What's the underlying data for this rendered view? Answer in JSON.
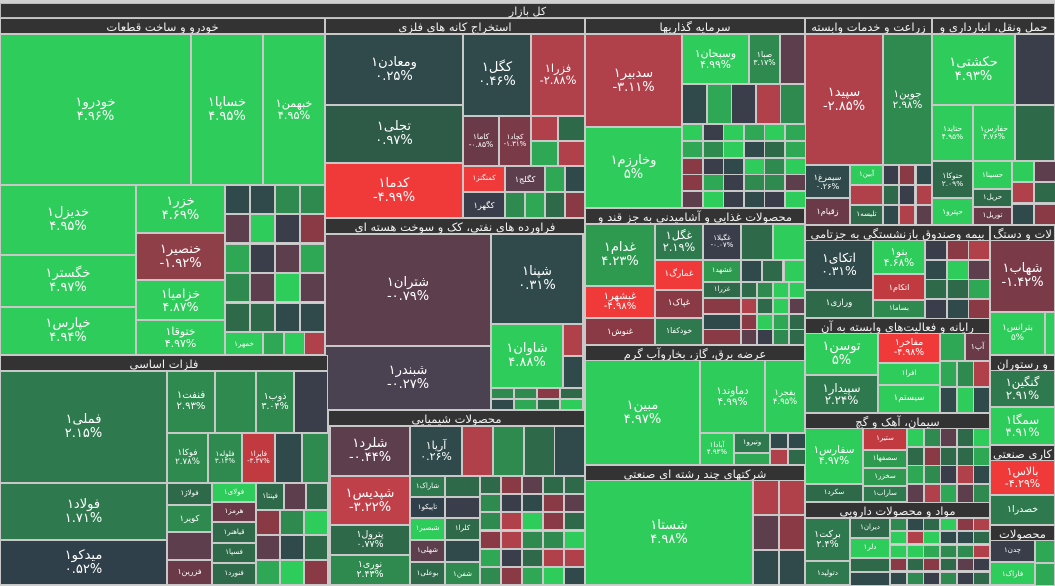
{
  "title": "کل بازار",
  "sectors": [
    {
      "title": "خودرو و ساخت قطعات",
      "stocks": [
        {
          "name": "خودرو۱",
          "change": "۴.۹۶%",
          "color": "#2ecc5a"
        },
        {
          "name": "خساپا۱",
          "change": "۴.۹۵%",
          "color": "#2ecc5a"
        },
        {
          "name": "خبهمن۱",
          "change": "۴.۹۵%",
          "color": "#2ecc5a"
        },
        {
          "name": "خدیزل۱",
          "change": "۴.۹۵%",
          "color": "#2ecc5a"
        },
        {
          "name": "خگستر۱",
          "change": "۴.۹۷%",
          "color": "#2ecc5a"
        },
        {
          "name": "خپارس۱",
          "change": "۴.۹۴%",
          "color": "#2ecc5a"
        },
        {
          "name": "خزر۱",
          "change": "۴.۶۹%",
          "color": "#2ecc5a"
        },
        {
          "name": "خنصیر۱",
          "change": "-۱.۹۲%",
          "color": "#8f3f48"
        },
        {
          "name": "خزامیا۱",
          "change": "۴.۸۷%",
          "color": "#2ecc5a"
        },
        {
          "name": "ختوقا۱",
          "change": "۴.۹۷%",
          "color": "#2ecc5a"
        },
        {
          "name": "خمهر۱",
          "change": "",
          "color": "#2ecc5a"
        }
      ]
    },
    {
      "title": "استخراج کانه های فلزی",
      "stocks": [
        {
          "name": "ومعادن۱",
          "change": "۰.۲۵%",
          "color": "#304a4c"
        },
        {
          "name": "تجلی۱",
          "change": "۰.۹۷%",
          "color": "#2e5a48"
        },
        {
          "name": "کدما۱",
          "change": "-۴.۹۹%",
          "color": "#f03a3a"
        },
        {
          "name": "کگل۱",
          "change": "۰.۴۶%",
          "color": "#304a4c"
        },
        {
          "name": "فزرا۱",
          "change": "-۲.۸۸%",
          "color": "#b0404a"
        },
        {
          "name": "کاما۱",
          "change": "-۰.۸۵%",
          "color": "#6a3a48"
        },
        {
          "name": "کچاد۱",
          "change": "-۱.۳۱%",
          "color": "#7a3a48"
        },
        {
          "name": "کمنگنز۱",
          "change": "",
          "color": "#f03a3a"
        },
        {
          "name": "کگهر۱",
          "change": "",
          "color": "#3a3d4a"
        },
        {
          "name": "کگلج۱",
          "change": "",
          "color": "#5c3e4c"
        }
      ]
    },
    {
      "title": "فراورده های نفتی، کک و سوخت هسته ای",
      "stocks": [
        {
          "name": "شتران۱",
          "change": "-۰.۷۹%",
          "color": "#5c3e4c"
        },
        {
          "name": "شبندر۱",
          "change": "-۰.۲۷%",
          "color": "#4a4250"
        },
        {
          "name": "شپنا۱",
          "change": "۰.۳۱%",
          "color": "#304a4c"
        },
        {
          "name": "شاوان۱",
          "change": "۴.۸۸%",
          "color": "#2ecc5a"
        }
      ]
    },
    {
      "title": "فلزات اساسی",
      "stocks": [
        {
          "name": "فملی۱",
          "change": "۲.۱۵%",
          "color": "#2e7a4e"
        },
        {
          "name": "فولاد۱",
          "change": "۱.۷۱%",
          "color": "#2e7a4e"
        },
        {
          "name": "میدکو۱",
          "change": "۰.۵۲%",
          "color": "#30404a"
        },
        {
          "name": "فنفت۱",
          "change": "۲.۹۳%",
          "color": "#2e8a4e"
        },
        {
          "name": "ذوب۱",
          "change": "۳.۰۴%",
          "color": "#2e8a4e"
        },
        {
          "name": "فوکا۱",
          "change": "۲.۷۸%",
          "color": "#2e8a4e"
        },
        {
          "name": "فلوله۱",
          "change": "۳.۱۴%",
          "color": "#2e8a4e"
        },
        {
          "name": "فایرا۱",
          "change": "-۳.۳۷%",
          "color": "#c03a40"
        },
        {
          "name": "فولاژ۱",
          "change": "",
          "color": "#2e6a4a"
        },
        {
          "name": "فولای۱",
          "change": "",
          "color": "#2ecc5a"
        },
        {
          "name": "فپنتا۱",
          "change": "",
          "color": "#2e6a4a"
        },
        {
          "name": "کویر۱",
          "change": "",
          "color": "#2e8a4e"
        },
        {
          "name": "هرمز۱",
          "change": "",
          "color": "#6a3a48"
        },
        {
          "name": "قیاهنر۱",
          "change": "",
          "color": "#2e6a4a"
        },
        {
          "name": "فسپا۱",
          "change": "",
          "color": "#2e6a4a"
        },
        {
          "name": "فنورد۱",
          "change": "",
          "color": "#2e6a4a"
        },
        {
          "name": "فزرین۱",
          "change": "",
          "color": "#6a3a48"
        }
      ]
    },
    {
      "title": "محصولات شیمیایی",
      "stocks": [
        {
          "name": "شلرد۱",
          "change": "-۰.۴۴%",
          "color": "#5c3e4c"
        },
        {
          "name": "آریا۱",
          "change": "۰.۲۶%",
          "color": "#304a4c"
        },
        {
          "name": "شپدیس۱",
          "change": "-۳.۲۲%",
          "color": "#c0404a"
        },
        {
          "name": "پترول۱",
          "change": "۰.۷۷%",
          "color": "#2e6a4a"
        },
        {
          "name": "نوری۱",
          "change": "۲.۴۳%",
          "color": "#2e8a4e"
        },
        {
          "name": "شاراک۱",
          "change": "",
          "color": "#2e7a4e"
        },
        {
          "name": "تاپیکو۱",
          "change": "",
          "color": "#30404a"
        },
        {
          "name": "شبصیر۱",
          "change": "",
          "color": "#2ecc5a"
        },
        {
          "name": "شهلی۱",
          "change": "",
          "color": "#5c3e4c"
        },
        {
          "name": "بوعلی۱",
          "change": "",
          "color": "#2e6a4a"
        },
        {
          "name": "کلرا۱",
          "change": "",
          "color": "#2e6a4a"
        },
        {
          "name": "شفن۱",
          "change": "",
          "color": "#2e8a4e"
        }
      ]
    },
    {
      "title": "سرمایه گذاریها",
      "stocks": [
        {
          "name": "سدبیر۱",
          "change": "-۳.۱۱%",
          "color": "#b0404a"
        },
        {
          "name": "وخارزم۱",
          "change": "۵%",
          "color": "#2ecc5a"
        },
        {
          "name": "وسبحان۱",
          "change": "۴.۹۹%",
          "color": "#2ecc5a"
        },
        {
          "name": "صبا۱",
          "change": "۳.۱۷%",
          "color": "#2e8a4e"
        }
      ]
    },
    {
      "title": "محصولات غذایی و آشامیدنی به جز قند و",
      "stocks": [
        {
          "name": "غدام۱",
          "change": "۴.۲۳%",
          "color": "#2e9a50"
        },
        {
          "name": "غبشهر۱",
          "change": "-۴.۹۸%",
          "color": "#f03a3a"
        },
        {
          "name": "غنوش۱",
          "change": "",
          "color": "#8a3a44"
        },
        {
          "name": "غگل۱",
          "change": "۲.۱۹%",
          "color": "#2e7a4e"
        },
        {
          "name": "غمارگ۱",
          "change": "",
          "color": "#f03a3a"
        },
        {
          "name": "غپاک۱",
          "change": "",
          "color": "#8a3a44"
        },
        {
          "name": "خودکفا۱",
          "change": "",
          "color": "#2e7a4e"
        },
        {
          "name": "غگیلا۱",
          "change": "-۰.۰۷%",
          "color": "#3a3d4a"
        },
        {
          "name": "غشهد۱",
          "change": "",
          "color": "#2e9a50"
        },
        {
          "name": "غزرا۱",
          "change": "",
          "color": "#2e6a4a"
        }
      ]
    },
    {
      "title": "عرضه برق، گاز، بخاروآب گرم",
      "stocks": [
        {
          "name": "مبین۱",
          "change": "۴.۹۷%",
          "color": "#2ecc5a"
        },
        {
          "name": "دماوند۱",
          "change": "۴.۹۹%",
          "color": "#2ecc5a"
        },
        {
          "name": "بفجر۱",
          "change": "۴.۹۵%",
          "color": "#2ecc5a"
        },
        {
          "name": "آبادا۱",
          "change": "۴.۹۴%",
          "color": "#2ecc5a"
        },
        {
          "name": "ونیرو۱",
          "change": "",
          "color": "#2e7a4e"
        }
      ]
    },
    {
      "title": "شرکتهای چند رشته ای صنعتی",
      "stocks": [
        {
          "name": "شستا۱",
          "change": "۴.۹۸%",
          "color": "#2ecc5a"
        }
      ]
    },
    {
      "title": "زراعت و خدمات وابسته",
      "stocks": [
        {
          "name": "سپید۱",
          "change": "-۲.۸۵%",
          "color": "#b0404a"
        },
        {
          "name": "جوین۱",
          "change": "۲.۹۸%",
          "color": "#2e8a4e"
        },
        {
          "name": "سیمرغ۱",
          "change": "۰.۲۶%",
          "color": "#304a4c"
        },
        {
          "name": "زقیام۱",
          "change": "",
          "color": "#6a3a48"
        },
        {
          "name": "آبین۱",
          "change": "",
          "color": "#2ecc5a"
        },
        {
          "name": "تلیسه۱",
          "change": "",
          "color": "#2e6a4a"
        }
      ]
    },
    {
      "title": "حمل ونقل، انبارداری و",
      "stocks": [
        {
          "name": "حکشتی۱",
          "change": "۴.۹۳%",
          "color": "#2ecc5a"
        },
        {
          "name": "حتاید۱",
          "change": "۴.۹۵%",
          "color": "#2ecc5a"
        },
        {
          "name": "حفارس۱",
          "change": "۴.۷۶%",
          "color": "#2ecc5a"
        },
        {
          "name": "حتوکا۱",
          "change": "۲.۰۹%",
          "color": "#2e6a4a"
        },
        {
          "name": "حسینا۱",
          "change": "",
          "color": "#2ecc5a"
        },
        {
          "name": "حریل۱",
          "change": "",
          "color": "#2e6a4a"
        },
        {
          "name": "حپترو۱",
          "change": "",
          "color": "#2ecc5a"
        },
        {
          "name": "توریل۱",
          "change": "",
          "color": "#6a3a48"
        }
      ]
    },
    {
      "title": "بیمه وصندوق بازنشستگی به جزتامی",
      "stocks": [
        {
          "name": "اتکای۱",
          "change": "۰.۳۱%",
          "color": "#304a4c"
        },
        {
          "name": "ورازی۱",
          "change": "",
          "color": "#2e6a4a"
        },
        {
          "name": "بنو۱",
          "change": "۴.۶۸%",
          "color": "#2ecc5a"
        },
        {
          "name": "اتکام۱",
          "change": "",
          "color": "#c03a40"
        },
        {
          "name": "بساما۱",
          "change": "",
          "color": "#2e8a4e"
        }
      ]
    },
    {
      "title": "رایانه و فعالیت‌های وابسته به آن",
      "stocks": [
        {
          "name": "توسن۱",
          "change": "۵%",
          "color": "#2ecc5a"
        },
        {
          "name": "سپیدار۱",
          "change": "۲.۲۴%",
          "color": "#2e7a4e"
        },
        {
          "name": "مفاخر۱",
          "change": "-۴.۹۸%",
          "color": "#f03a3a"
        },
        {
          "name": "افرا۱",
          "change": "",
          "color": "#2ecc5a"
        },
        {
          "name": "سیستم۱",
          "change": "",
          "color": "#2ecc5a"
        },
        {
          "name": "آپ۱",
          "change": "",
          "color": "#6a3a48"
        }
      ]
    },
    {
      "title": "سیمان، آهک و گچ",
      "stocks": [
        {
          "name": "سفارس۱",
          "change": "۴.۹۷%",
          "color": "#2ecc5a"
        },
        {
          "name": "سکرد۱",
          "change": "",
          "color": "#2e6a4a"
        },
        {
          "name": "ستیر۱",
          "change": "",
          "color": "#c03a40"
        },
        {
          "name": "سصفها۱",
          "change": "",
          "color": "#2e9a50"
        },
        {
          "name": "سخزر۱",
          "change": "",
          "color": "#2e9a50"
        },
        {
          "name": "ساراب۱",
          "change": "",
          "color": "#2e7a4e"
        }
      ]
    },
    {
      "title": "مواد و محصولات دارویی",
      "stocks": [
        {
          "name": "برکت۱",
          "change": "۲.۴%",
          "color": "#2e7a4e"
        },
        {
          "name": "دتولید۱",
          "change": "",
          "color": "#2e7a4e"
        },
        {
          "name": "دیران۱",
          "change": "",
          "color": "#2e6a4a"
        },
        {
          "name": "دلر۱",
          "change": "",
          "color": "#2ecc5a"
        }
      ]
    },
    {
      "title": "لات و دستگ",
      "stocks": [
        {
          "name": "شهاب۱",
          "change": "-۱.۴۲%",
          "color": "#7a3a48"
        },
        {
          "name": "بترانس۱",
          "change": "۵%",
          "color": "#2ecc5a"
        }
      ]
    },
    {
      "title": "و رستوران",
      "stocks": [
        {
          "name": "گنگین۱",
          "change": "۲.۹۱%",
          "color": "#2e7a4e"
        },
        {
          "name": "سمگا۱",
          "change": "۴.۹۱%",
          "color": "#2ecc5a"
        }
      ]
    },
    {
      "title": "کاری صنعتی",
      "stocks": [
        {
          "name": "بالاس۱",
          "change": "-۴.۲۹%",
          "color": "#f03a3a"
        },
        {
          "name": "خصدرا۱",
          "change": "",
          "color": "#2e7a4e"
        }
      ]
    },
    {
      "title": "محصولات",
      "stocks": [
        {
          "name": "چدن۱",
          "change": "",
          "color": "#3a3d4a"
        },
        {
          "name": "فاراک۱",
          "change": "",
          "color": "#2ecc5a"
        }
      ]
    }
  ],
  "filler_palette": [
    "#2ecc5a",
    "#2ea855",
    "#2e8a4e",
    "#2e6a4a",
    "#304a4c",
    "#5c3e4c",
    "#8a3a44",
    "#3a3d4a",
    "#b0404a"
  ]
}
